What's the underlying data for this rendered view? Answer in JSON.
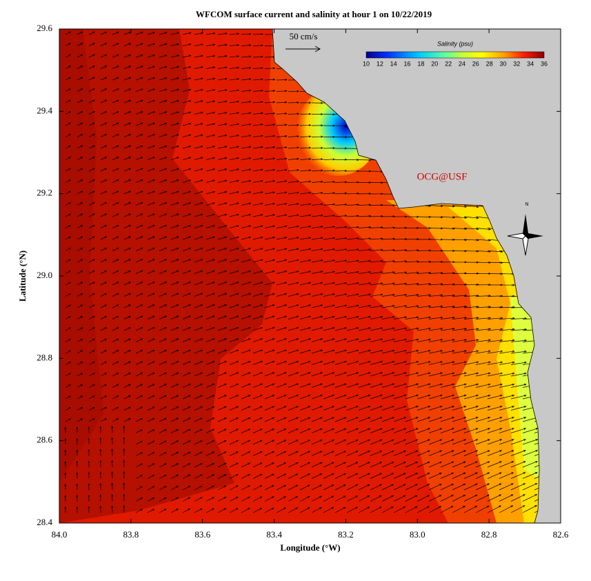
{
  "map": {
    "title": "WFCOM surface current and salinity at hour 1 on 10/22/2019",
    "x_label": "Longitude (°W)",
    "y_label": "Latitude (°N)",
    "xlim": [
      84.0,
      82.6
    ],
    "ylim": [
      28.4,
      29.6
    ],
    "xticks": [
      {
        "value": 84.0,
        "label": "84.0"
      },
      83.8,
      83.6,
      83.4,
      83.2,
      {
        "value": 83.0,
        "label": "83.0"
      },
      82.8,
      82.6
    ],
    "yticks": [
      28.4,
      28.6,
      28.8,
      {
        "value": 29.0,
        "label": "29.0"
      },
      29.2,
      29.4,
      29.6
    ],
    "scale_label": "50 cm/s",
    "watermark": "OCG@USF",
    "compass": "N",
    "colorbar": {
      "title": "Salinity (psu)",
      "ticks": [
        10,
        12,
        14,
        16,
        18,
        20,
        22,
        24,
        26,
        28,
        30,
        32,
        34,
        36
      ]
    }
  }
}
